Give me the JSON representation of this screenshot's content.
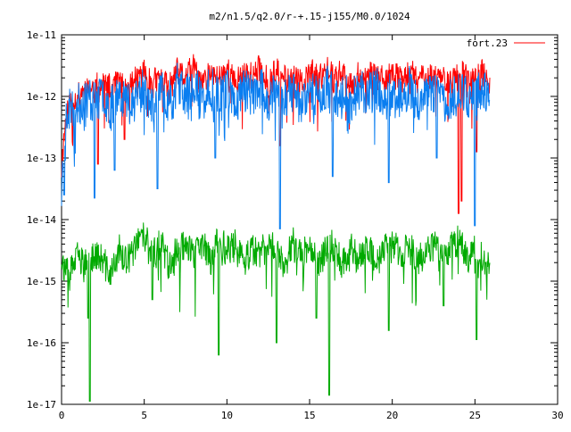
{
  "chart_data": {
    "type": "line",
    "title": "m2/n1.5/q2.0/r-+.15-j155/M0.0/1024",
    "xlabel": "",
    "ylabel": "",
    "y_scale": "log",
    "xlim": [
      0,
      30
    ],
    "ylim_log10": [
      -17,
      -11
    ],
    "x_ticks": [
      0,
      5,
      10,
      15,
      20,
      25,
      30
    ],
    "x_tick_labels": [
      "0",
      "5",
      "10",
      "15",
      "20",
      "25",
      "30"
    ],
    "y_ticks_log10": [
      -17,
      -16,
      -15,
      -14,
      -13,
      -12,
      -11
    ],
    "y_tick_labels": [
      "1e-17",
      "1e-16",
      "1e-15",
      "1e-14",
      "1e-13",
      "1e-12",
      "1e-11"
    ],
    "grid": false,
    "legend_position": "top-right",
    "series": [
      {
        "name": "fort.23",
        "color": "#ff0000",
        "x": [
          0.0,
          0.1,
          0.2,
          0.3,
          0.5,
          1.0,
          1.5,
          2.0,
          2.5,
          3.0,
          3.5,
          4.0,
          4.5,
          5.0,
          5.5,
          6.0,
          6.5,
          7.0,
          7.5,
          8.0,
          8.5,
          9.0,
          9.5,
          10.0,
          10.5,
          11.0,
          11.5,
          12.0,
          12.5,
          13.0,
          13.5,
          14.0,
          14.5,
          15.0,
          15.5,
          16.0,
          16.5,
          17.0,
          17.5,
          18.0,
          18.5,
          19.0,
          19.5,
          20.0,
          20.5,
          21.0,
          21.5,
          22.0,
          22.5,
          23.0,
          23.5,
          24.0,
          24.5,
          25.0,
          25.5,
          25.9
        ],
        "log10_y": [
          -13.2,
          -12.8,
          -12.5,
          -12.3,
          -12.1,
          -12.0,
          -11.85,
          -11.9,
          -11.8,
          -11.9,
          -11.75,
          -11.9,
          -11.7,
          -11.6,
          -11.8,
          -11.7,
          -11.9,
          -11.6,
          -11.7,
          -11.55,
          -11.8,
          -11.65,
          -11.7,
          -11.55,
          -11.8,
          -11.6,
          -11.7,
          -11.55,
          -11.8,
          -11.6,
          -11.7,
          -11.65,
          -11.8,
          -11.6,
          -11.75,
          -11.6,
          -11.7,
          -11.6,
          -11.8,
          -11.65,
          -11.7,
          -11.6,
          -11.8,
          -11.65,
          -11.7,
          -11.6,
          -11.75,
          -11.6,
          -11.7,
          -11.65,
          -11.8,
          -11.6,
          -11.7,
          -11.7,
          -11.6,
          -11.9
        ],
        "dips": [
          {
            "x": 2.2,
            "log10_y": -13.1
          },
          {
            "x": 3.8,
            "log10_y": -12.7
          },
          {
            "x": 13.2,
            "log10_y": -12.8
          },
          {
            "x": 24.0,
            "log10_y": -13.9
          },
          {
            "x": 24.2,
            "log10_y": -13.7
          },
          {
            "x": 25.1,
            "log10_y": -12.9
          }
        ]
      },
      {
        "name": "",
        "color": "#0a7ef0",
        "x": [
          0.0,
          0.1,
          0.2,
          0.3,
          0.5,
          1.0,
          1.5,
          2.0,
          2.5,
          3.0,
          3.5,
          4.0,
          4.5,
          5.0,
          5.5,
          6.0,
          6.5,
          7.0,
          7.5,
          8.0,
          8.5,
          9.0,
          9.5,
          10.0,
          10.5,
          11.0,
          11.5,
          12.0,
          12.5,
          13.0,
          13.5,
          14.0,
          14.5,
          15.0,
          15.5,
          16.0,
          16.5,
          17.0,
          17.5,
          18.0,
          18.5,
          19.0,
          19.5,
          20.0,
          20.5,
          21.0,
          21.5,
          22.0,
          22.5,
          23.0,
          23.5,
          24.0,
          24.5,
          25.0,
          25.5,
          25.9
        ],
        "log10_y": [
          -13.6,
          -12.9,
          -12.6,
          -12.4,
          -12.2,
          -12.15,
          -12.0,
          -12.1,
          -11.95,
          -12.2,
          -11.9,
          -12.1,
          -11.95,
          -11.85,
          -12.2,
          -11.95,
          -12.1,
          -11.8,
          -12.0,
          -11.8,
          -12.1,
          -11.9,
          -12.0,
          -11.8,
          -12.15,
          -11.85,
          -12.0,
          -11.85,
          -12.1,
          -11.9,
          -12.0,
          -11.95,
          -12.1,
          -11.9,
          -12.05,
          -11.85,
          -12.0,
          -11.9,
          -12.15,
          -11.9,
          -12.0,
          -11.85,
          -12.1,
          -11.95,
          -12.0,
          -11.85,
          -12.1,
          -11.9,
          -12.0,
          -11.95,
          -12.1,
          -11.9,
          -12.0,
          -11.95,
          -11.85,
          -12.2
        ],
        "dips": [
          {
            "x": 0.15,
            "log10_y": -13.6
          },
          {
            "x": 2.0,
            "log10_y": -13.65
          },
          {
            "x": 3.2,
            "log10_y": -13.2
          },
          {
            "x": 5.8,
            "log10_y": -13.5
          },
          {
            "x": 9.3,
            "log10_y": -13.0
          },
          {
            "x": 13.2,
            "log10_y": -14.15
          },
          {
            "x": 16.4,
            "log10_y": -13.3
          },
          {
            "x": 19.8,
            "log10_y": -13.4
          },
          {
            "x": 22.7,
            "log10_y": -13.0
          },
          {
            "x": 25.0,
            "log10_y": -14.1
          }
        ]
      },
      {
        "name": "",
        "color": "#00aa00",
        "x": [
          0.0,
          0.1,
          0.3,
          0.5,
          1.0,
          1.5,
          2.0,
          2.5,
          3.0,
          3.5,
          4.0,
          4.5,
          5.0,
          5.5,
          6.0,
          6.5,
          7.0,
          7.5,
          8.0,
          8.5,
          9.0,
          9.5,
          10.0,
          10.5,
          11.0,
          11.5,
          12.0,
          12.5,
          13.0,
          13.5,
          14.0,
          14.5,
          15.0,
          15.5,
          16.0,
          16.5,
          17.0,
          17.5,
          18.0,
          18.5,
          19.0,
          19.5,
          20.0,
          20.5,
          21.0,
          21.5,
          22.0,
          22.5,
          23.0,
          23.5,
          24.0,
          24.5,
          25.0,
          25.5,
          25.9
        ],
        "log10_y": [
          -14.6,
          -14.7,
          -14.9,
          -14.85,
          -14.6,
          -14.8,
          -14.55,
          -14.7,
          -14.9,
          -14.5,
          -14.7,
          -14.4,
          -14.3,
          -14.6,
          -14.4,
          -14.7,
          -14.5,
          -14.35,
          -14.6,
          -14.4,
          -14.65,
          -14.3,
          -14.5,
          -14.4,
          -14.7,
          -14.45,
          -14.6,
          -14.35,
          -14.5,
          -14.7,
          -14.4,
          -14.6,
          -14.35,
          -14.7,
          -14.5,
          -14.4,
          -14.75,
          -14.45,
          -14.6,
          -14.4,
          -14.7,
          -14.5,
          -14.35,
          -14.6,
          -14.45,
          -14.7,
          -14.5,
          -14.4,
          -14.6,
          -14.45,
          -14.3,
          -14.6,
          -14.45,
          -14.7,
          -14.75
        ],
        "dips": [
          {
            "x": 1.6,
            "log10_y": -15.6
          },
          {
            "x": 1.7,
            "log10_y": -16.95
          },
          {
            "x": 5.5,
            "log10_y": -15.3
          },
          {
            "x": 9.5,
            "log10_y": -16.2
          },
          {
            "x": 13.0,
            "log10_y": -16.0
          },
          {
            "x": 15.4,
            "log10_y": -15.6
          },
          {
            "x": 16.2,
            "log10_y": -16.85
          },
          {
            "x": 19.8,
            "log10_y": -15.8
          },
          {
            "x": 23.1,
            "log10_y": -15.4
          },
          {
            "x": 25.1,
            "log10_y": -15.95
          }
        ]
      }
    ]
  }
}
